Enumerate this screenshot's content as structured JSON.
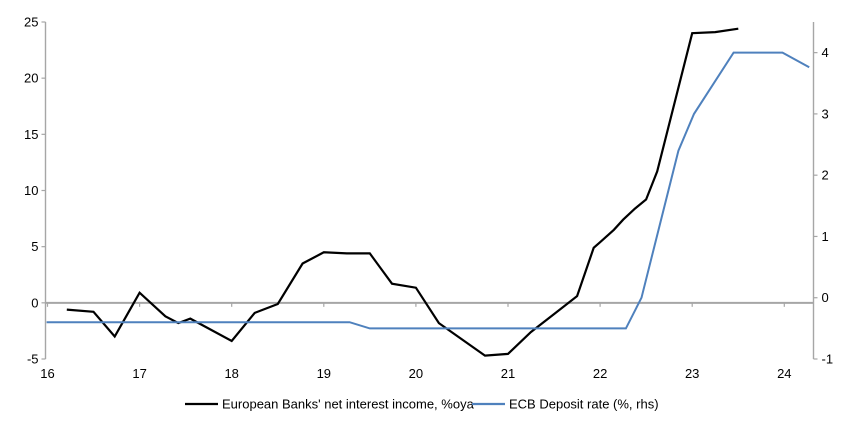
{
  "chart_data": {
    "type": "line",
    "title": "",
    "background_color": "#ffffff",
    "axis_color": "#a6a6a6",
    "text_color": "#000000",
    "grid": "zero-line-only",
    "legend_position": "bottom",
    "x_axis": {
      "tick_labels": [
        "16",
        "17",
        "18",
        "19",
        "20",
        "21",
        "22",
        "23",
        "24"
      ],
      "tick_values": [
        16,
        17,
        18,
        19,
        20,
        21,
        22,
        23,
        24
      ],
      "range": [
        15.97,
        24.3
      ]
    },
    "left_axis": {
      "tick_values": [
        -5,
        0,
        5,
        10,
        15,
        20,
        25
      ],
      "range": [
        -5,
        25
      ]
    },
    "right_axis": {
      "tick_values": [
        -1,
        0,
        1,
        2,
        3,
        4
      ],
      "range": [
        -1,
        4.5
      ]
    },
    "series": [
      {
        "name": "European Banks' net interest income, %oya",
        "color": "#000000",
        "stroke_width": 2.2,
        "axis": "left",
        "points": [
          [
            16.21,
            -0.6
          ],
          [
            16.5,
            -0.8
          ],
          [
            16.73,
            -3.0
          ],
          [
            17.0,
            0.9
          ],
          [
            17.28,
            -1.2
          ],
          [
            17.42,
            -1.8
          ],
          [
            17.55,
            -1.4
          ],
          [
            18.0,
            -3.4
          ],
          [
            18.25,
            -0.9
          ],
          [
            18.5,
            -0.1
          ],
          [
            18.77,
            3.5
          ],
          [
            19.0,
            4.5
          ],
          [
            19.25,
            4.4
          ],
          [
            19.5,
            4.4
          ],
          [
            19.74,
            1.7
          ],
          [
            20.0,
            1.35
          ],
          [
            20.25,
            -1.8
          ],
          [
            20.75,
            -4.7
          ],
          [
            21.0,
            -4.55
          ],
          [
            21.25,
            -2.6
          ],
          [
            21.5,
            -1.0
          ],
          [
            21.75,
            0.6
          ],
          [
            21.93,
            4.9
          ],
          [
            22.0,
            5.4
          ],
          [
            22.15,
            6.5
          ],
          [
            22.25,
            7.4
          ],
          [
            22.38,
            8.4
          ],
          [
            22.5,
            9.2
          ],
          [
            22.62,
            11.7
          ],
          [
            23.0,
            24.0
          ],
          [
            23.25,
            24.1
          ],
          [
            23.5,
            24.4
          ]
        ]
      },
      {
        "name": "ECB Deposit rate (%, rhs)",
        "color": "#4f81bd",
        "stroke_width": 2,
        "axis": "right",
        "points": [
          [
            15.99,
            -0.4
          ],
          [
            19.28,
            -0.4
          ],
          [
            19.5,
            -0.5
          ],
          [
            22.28,
            -0.5
          ],
          [
            22.45,
            0.0
          ],
          [
            22.85,
            2.4
          ],
          [
            23.02,
            3.0
          ],
          [
            23.45,
            4.0
          ],
          [
            23.98,
            4.0
          ],
          [
            24.27,
            3.76
          ]
        ]
      }
    ]
  }
}
